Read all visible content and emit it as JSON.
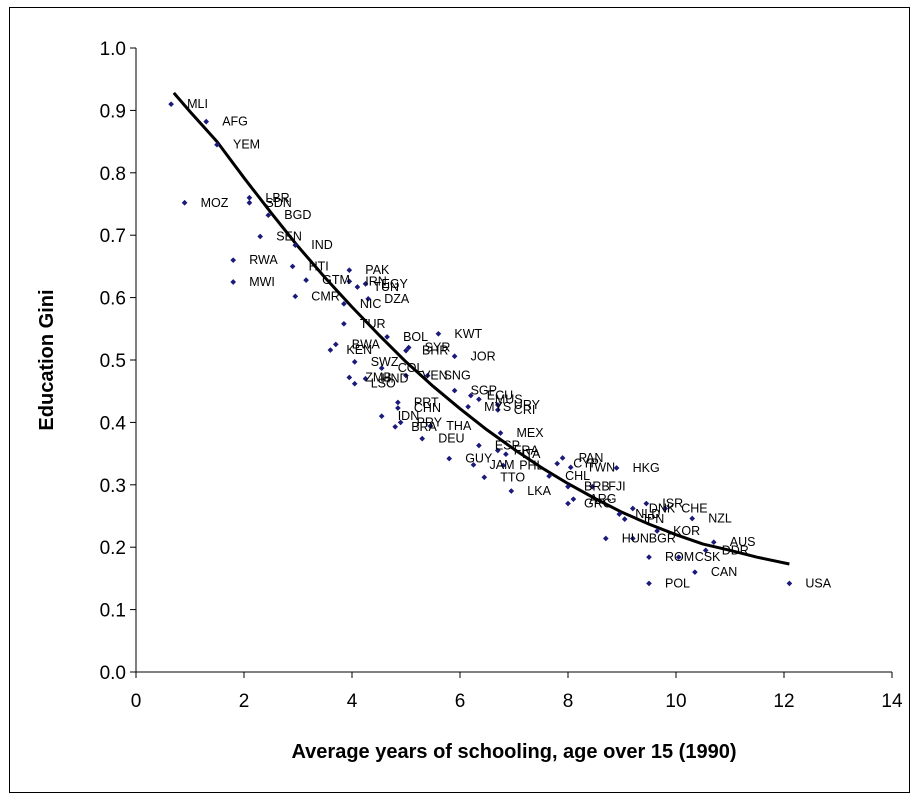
{
  "chart_data": {
    "type": "scatter",
    "title": "",
    "xlabel": "Average years of schooling, age over 15 (1990)",
    "ylabel": "Education Gini",
    "xlim": [
      0,
      14
    ],
    "ylim": [
      0.0,
      1.0
    ],
    "x_ticks": [
      "0",
      "2",
      "4",
      "6",
      "8",
      "10",
      "12",
      "14"
    ],
    "y_ticks": [
      "0.0",
      "0.1",
      "0.2",
      "0.3",
      "0.4",
      "0.5",
      "0.6",
      "0.7",
      "0.8",
      "0.9",
      "1.0"
    ],
    "grid": false,
    "legend": "none",
    "colors": {
      "points": "#1a1a7a",
      "trend": "#000000",
      "text": "#000000"
    },
    "points": [
      {
        "label": "MLI",
        "x": 0.65,
        "y": 0.91
      },
      {
        "label": "AFG",
        "x": 1.3,
        "y": 0.882
      },
      {
        "label": "YEM",
        "x": 1.5,
        "y": 0.845
      },
      {
        "label": "MOZ",
        "x": 0.9,
        "y": 0.752
      },
      {
        "label": "LBR",
        "x": 2.1,
        "y": 0.76
      },
      {
        "label": "SDN",
        "x": 2.1,
        "y": 0.752
      },
      {
        "label": "BGD",
        "x": 2.45,
        "y": 0.732
      },
      {
        "label": "SEN",
        "x": 2.3,
        "y": 0.698
      },
      {
        "label": "IND",
        "x": 2.95,
        "y": 0.684
      },
      {
        "label": "RWA",
        "x": 1.8,
        "y": 0.66
      },
      {
        "label": "MWI",
        "x": 1.8,
        "y": 0.625
      },
      {
        "label": "HTI",
        "x": 2.9,
        "y": 0.65
      },
      {
        "label": "GTM",
        "x": 3.15,
        "y": 0.628
      },
      {
        "label": "CMR",
        "x": 2.95,
        "y": 0.602
      },
      {
        "label": "PAK",
        "x": 3.95,
        "y": 0.644
      },
      {
        "label": "IRN",
        "x": 3.95,
        "y": 0.626
      },
      {
        "label": "EGY",
        "x": 4.25,
        "y": 0.622
      },
      {
        "label": "TUN",
        "x": 4.1,
        "y": 0.617
      },
      {
        "label": "NIC",
        "x": 3.85,
        "y": 0.59
      },
      {
        "label": "DZA",
        "x": 4.3,
        "y": 0.598
      },
      {
        "label": "TUR",
        "x": 3.85,
        "y": 0.558
      },
      {
        "label": "KWT",
        "x": 5.6,
        "y": 0.542
      },
      {
        "label": "BOL",
        "x": 4.65,
        "y": 0.537
      },
      {
        "label": "SYR",
        "x": 5.05,
        "y": 0.52
      },
      {
        "label": "BHR",
        "x": 5.0,
        "y": 0.515
      },
      {
        "label": "JOR",
        "x": 5.9,
        "y": 0.506
      },
      {
        "label": "BWA",
        "x": 3.7,
        "y": 0.525
      },
      {
        "label": "KEN",
        "x": 3.6,
        "y": 0.516
      },
      {
        "label": "SWZ",
        "x": 4.05,
        "y": 0.497
      },
      {
        "label": "COL",
        "x": 4.55,
        "y": 0.487
      },
      {
        "label": "ZMB",
        "x": 3.95,
        "y": 0.472
      },
      {
        "label": "HND",
        "x": 4.25,
        "y": 0.47
      },
      {
        "label": "LSO",
        "x": 4.05,
        "y": 0.462
      },
      {
        "label": "VEN",
        "x": 5.0,
        "y": 0.475
      },
      {
        "label": "SNG",
        "x": 5.4,
        "y": 0.475
      },
      {
        "label": "ECU",
        "x": 6.2,
        "y": 0.443
      },
      {
        "label": "SGP",
        "x": 5.9,
        "y": 0.451
      },
      {
        "label": "MUS",
        "x": 6.35,
        "y": 0.437
      },
      {
        "label": "MYS",
        "x": 6.15,
        "y": 0.425
      },
      {
        "label": "URY",
        "x": 6.7,
        "y": 0.428
      },
      {
        "label": "CRI",
        "x": 6.7,
        "y": 0.42
      },
      {
        "label": "PRT",
        "x": 4.85,
        "y": 0.432
      },
      {
        "label": "CHN",
        "x": 4.85,
        "y": 0.423
      },
      {
        "label": "IDN",
        "x": 4.55,
        "y": 0.41
      },
      {
        "label": "PRY",
        "x": 4.9,
        "y": 0.4
      },
      {
        "label": "BRA",
        "x": 4.8,
        "y": 0.393
      },
      {
        "label": "THA",
        "x": 5.45,
        "y": 0.394
      },
      {
        "label": "DEU",
        "x": 5.3,
        "y": 0.374
      },
      {
        "label": "MEX",
        "x": 6.75,
        "y": 0.383
      },
      {
        "label": "ESP",
        "x": 6.35,
        "y": 0.363
      },
      {
        "label": "FRA",
        "x": 6.7,
        "y": 0.355
      },
      {
        "label": "ITA",
        "x": 6.85,
        "y": 0.349
      },
      {
        "label": "GUY",
        "x": 5.8,
        "y": 0.342
      },
      {
        "label": "JAM",
        "x": 6.25,
        "y": 0.332
      },
      {
        "label": "PHL",
        "x": 6.8,
        "y": 0.331
      },
      {
        "label": "TTO",
        "x": 6.45,
        "y": 0.312
      },
      {
        "label": "PAN",
        "x": 7.9,
        "y": 0.343
      },
      {
        "label": "CYP",
        "x": 7.8,
        "y": 0.334
      },
      {
        "label": "TWN",
        "x": 8.05,
        "y": 0.328
      },
      {
        "label": "HKG",
        "x": 8.9,
        "y": 0.327
      },
      {
        "label": "CHL",
        "x": 7.65,
        "y": 0.314
      },
      {
        "label": "BRB",
        "x": 8.0,
        "y": 0.297
      },
      {
        "label": "FJI",
        "x": 8.45,
        "y": 0.297
      },
      {
        "label": "LKA",
        "x": 6.95,
        "y": 0.29
      },
      {
        "label": "ARG",
        "x": 8.1,
        "y": 0.277
      },
      {
        "label": "GRC",
        "x": 8.0,
        "y": 0.27
      },
      {
        "label": "ISR",
        "x": 9.45,
        "y": 0.27
      },
      {
        "label": "DNK",
        "x": 9.2,
        "y": 0.262
      },
      {
        "label": "CHE",
        "x": 9.8,
        "y": 0.262
      },
      {
        "label": "NLD",
        "x": 8.95,
        "y": 0.253
      },
      {
        "label": "JPN",
        "x": 9.05,
        "y": 0.245
      },
      {
        "label": "NZL",
        "x": 10.3,
        "y": 0.246
      },
      {
        "label": "KOR",
        "x": 9.65,
        "y": 0.226
      },
      {
        "label": "HUN",
        "x": 8.7,
        "y": 0.214
      },
      {
        "label": "BGR",
        "x": 9.2,
        "y": 0.214
      },
      {
        "label": "AUS",
        "x": 10.7,
        "y": 0.208
      },
      {
        "label": "DDR",
        "x": 10.55,
        "y": 0.195
      },
      {
        "label": "ROM",
        "x": 9.5,
        "y": 0.184
      },
      {
        "label": "CSK",
        "x": 10.05,
        "y": 0.184
      },
      {
        "label": "CAN",
        "x": 10.35,
        "y": 0.16
      },
      {
        "label": "POL",
        "x": 9.5,
        "y": 0.142
      },
      {
        "label": "USA",
        "x": 12.1,
        "y": 0.142
      }
    ],
    "trendline": [
      {
        "x": 0.7,
        "y": 0.928
      },
      {
        "x": 1.0,
        "y": 0.898
      },
      {
        "x": 1.5,
        "y": 0.85
      },
      {
        "x": 2.0,
        "y": 0.792
      },
      {
        "x": 2.5,
        "y": 0.736
      },
      {
        "x": 3.0,
        "y": 0.682
      },
      {
        "x": 3.5,
        "y": 0.632
      },
      {
        "x": 4.0,
        "y": 0.585
      },
      {
        "x": 4.5,
        "y": 0.54
      },
      {
        "x": 5.0,
        "y": 0.497
      },
      {
        "x": 5.5,
        "y": 0.458
      },
      {
        "x": 6.0,
        "y": 0.422
      },
      {
        "x": 6.5,
        "y": 0.388
      },
      {
        "x": 7.0,
        "y": 0.357
      },
      {
        "x": 7.5,
        "y": 0.328
      },
      {
        "x": 8.0,
        "y": 0.302
      },
      {
        "x": 8.5,
        "y": 0.278
      },
      {
        "x": 9.0,
        "y": 0.256
      },
      {
        "x": 9.5,
        "y": 0.237
      },
      {
        "x": 10.0,
        "y": 0.22
      },
      {
        "x": 10.5,
        "y": 0.205
      },
      {
        "x": 11.0,
        "y": 0.195
      },
      {
        "x": 11.5,
        "y": 0.184
      },
      {
        "x": 12.1,
        "y": 0.173
      }
    ]
  }
}
